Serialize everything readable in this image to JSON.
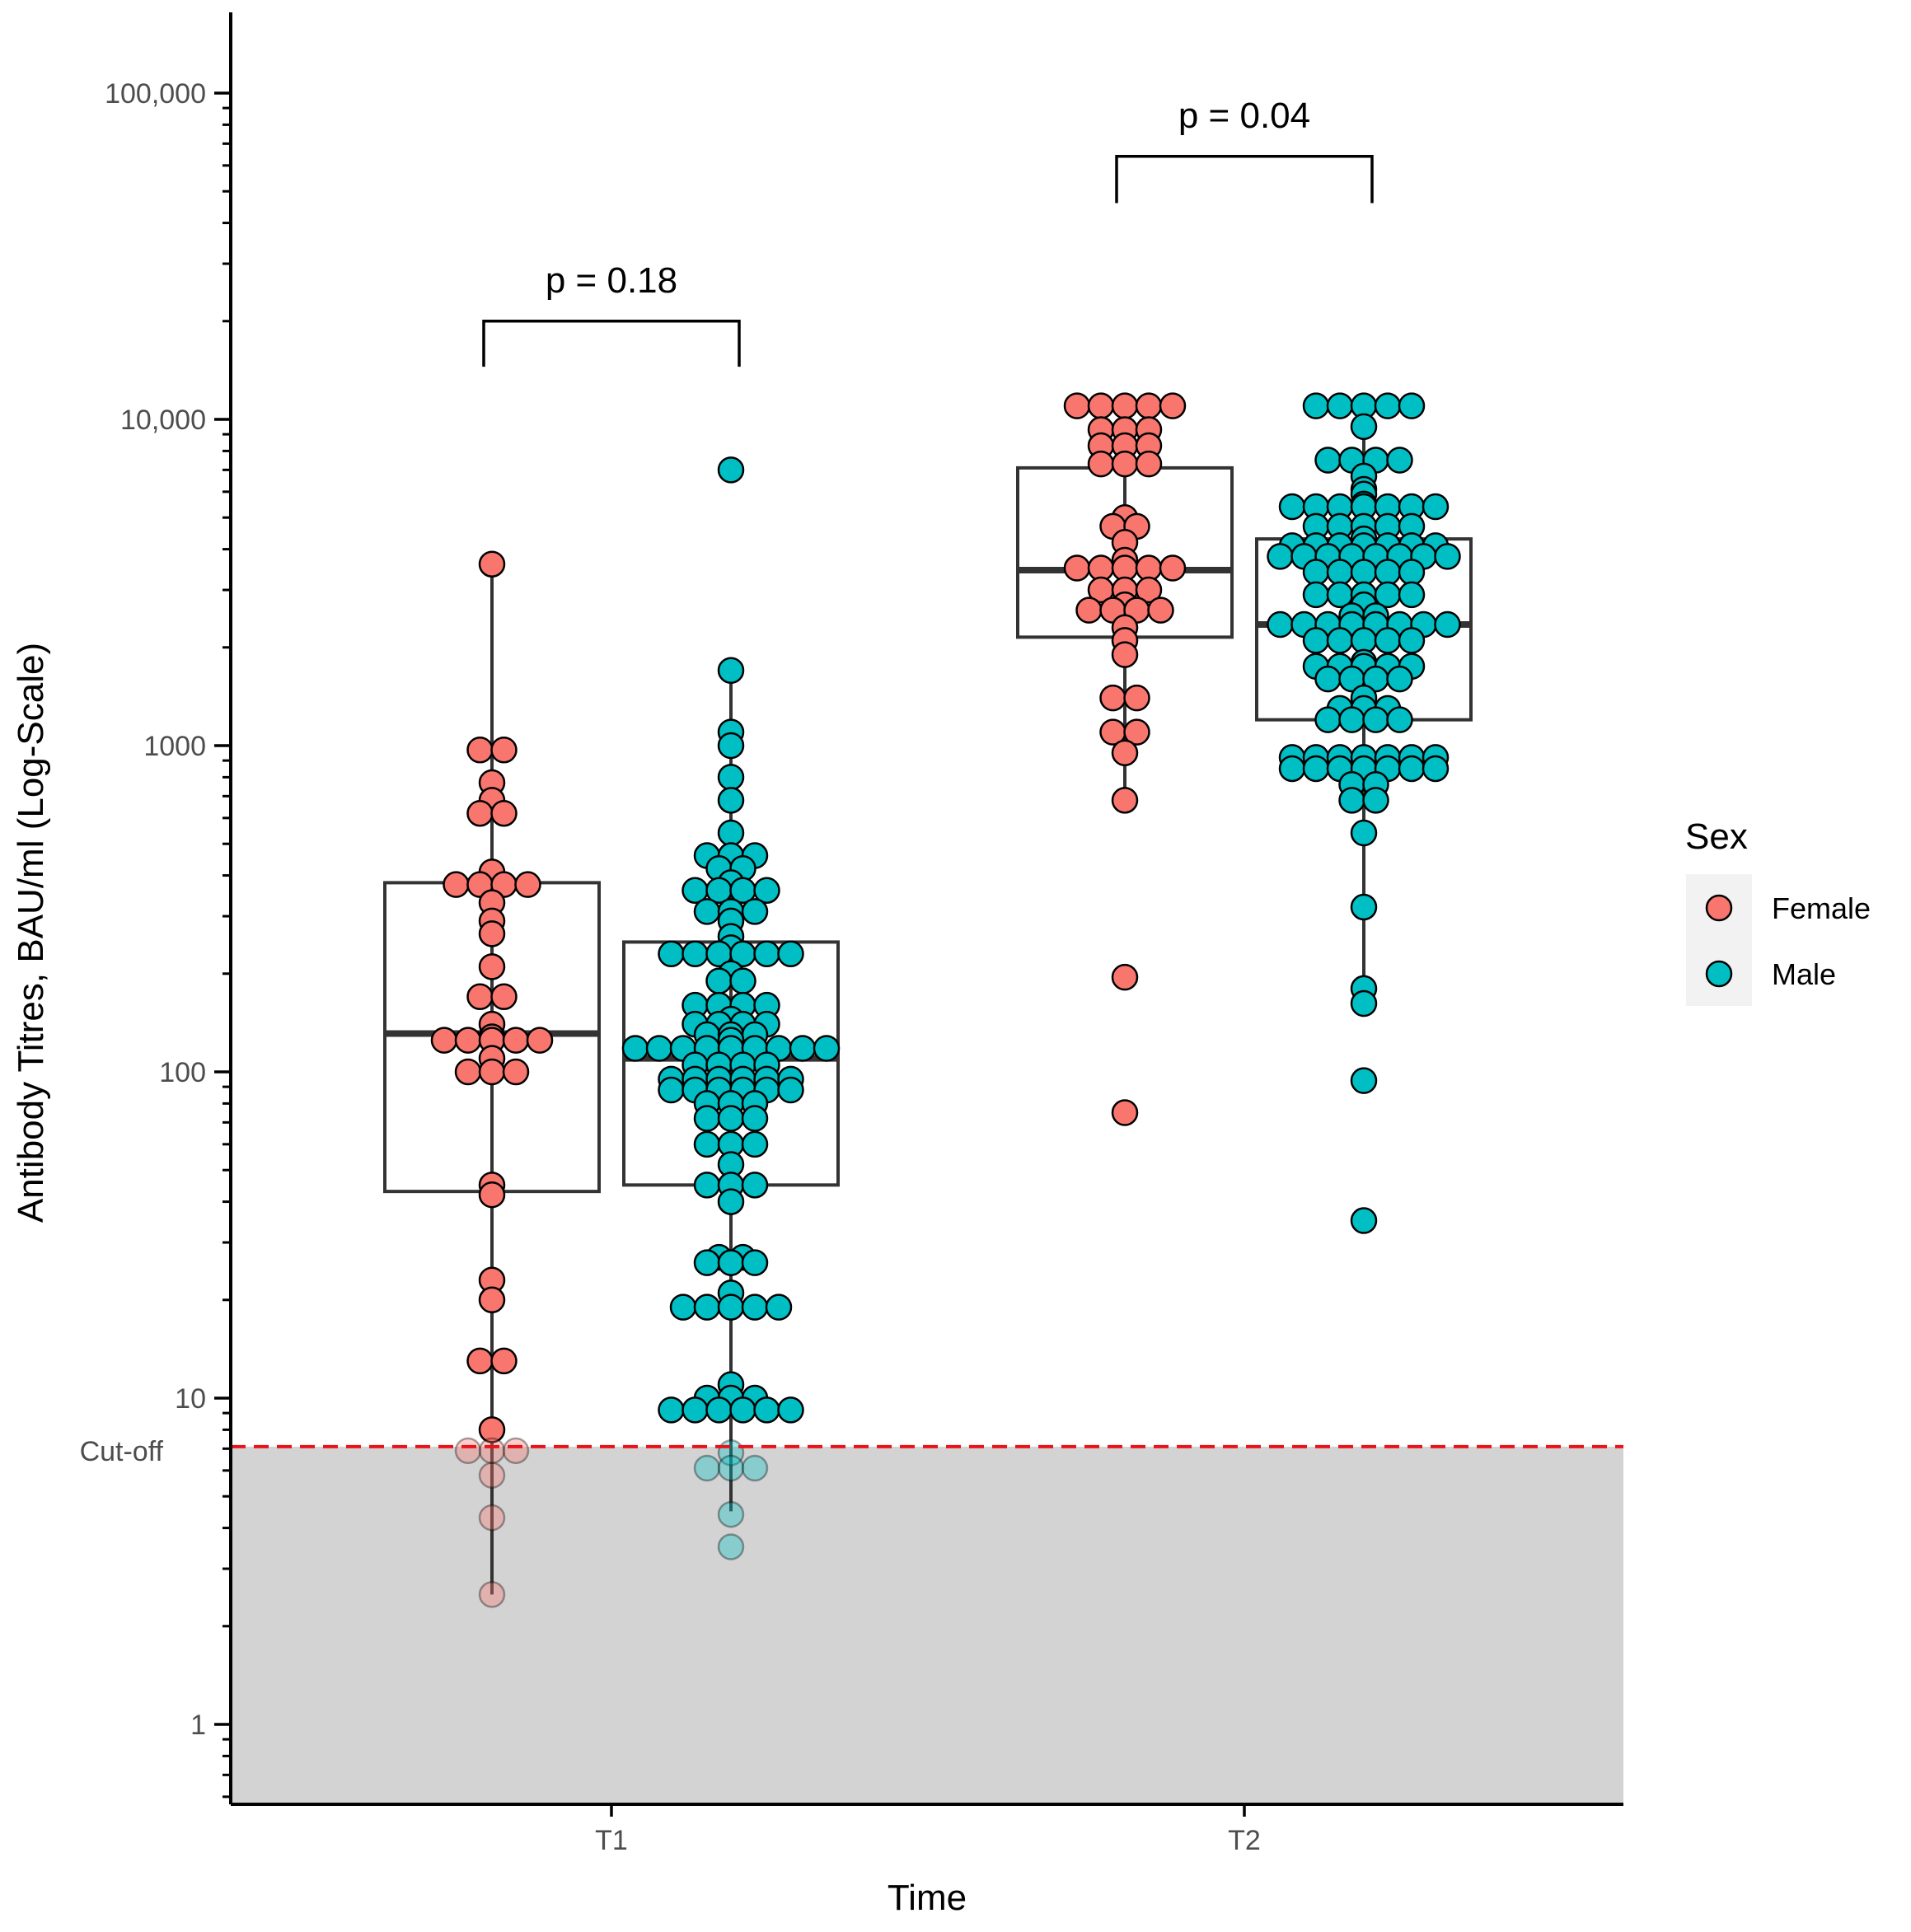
{
  "chart_data": {
    "type": "boxplot-beeswarm",
    "xlabel": "Time",
    "ylabel": "Antibody Titres, BAU/ml (Log-Scale)",
    "y_scale": "log10",
    "ylim": [
      0.55,
      180000
    ],
    "y_ticks": [
      {
        "value": 1,
        "label": "1"
      },
      {
        "value": 10,
        "label": "10"
      },
      {
        "value": 100,
        "label": "100"
      },
      {
        "value": 1000,
        "label": "1000"
      },
      {
        "value": 10000,
        "label": "10,000"
      },
      {
        "value": 100000,
        "label": "100,000"
      }
    ],
    "categories": [
      "T1",
      "T2"
    ],
    "cutoff": {
      "value": 7.1,
      "label": "Cut-off",
      "color": "#e8141a"
    },
    "shade_color": "#d3d3d3",
    "legend": {
      "title": "Sex",
      "position": "right",
      "entries": [
        {
          "name": "Female",
          "color": "#f8766d"
        },
        {
          "name": "Male",
          "color": "#00bfc4"
        }
      ]
    },
    "comparisons": [
      {
        "category": "T1",
        "label": "p = 0.18",
        "y_bracket": 20000,
        "y_drop": 14500
      },
      {
        "category": "T2",
        "label": "p = 0.04",
        "y_bracket": 64000,
        "y_drop": 46000
      }
    ],
    "series": [
      {
        "name": "Female",
        "group": "T1",
        "color": "#f8766d",
        "box": {
          "q1": 43,
          "median": 131,
          "q3": 380,
          "whisker_low": 2.5,
          "whisker_high": 3600
        },
        "points": [
          3600,
          970,
          970,
          770,
          680,
          620,
          620,
          410,
          375,
          375,
          375,
          375,
          330,
          290,
          265,
          210,
          170,
          170,
          140,
          128,
          125,
          125,
          125,
          125,
          125,
          110,
          100,
          100,
          100,
          45,
          42,
          23,
          20,
          13,
          13,
          8,
          6.9,
          6.9,
          6.9,
          5.8,
          4.3,
          2.5
        ]
      },
      {
        "name": "Male",
        "group": "T1",
        "color": "#00bfc4",
        "box": {
          "q1": 45,
          "median": 110,
          "q3": 250,
          "whisker_low": 4.5,
          "whisker_high": 1700
        },
        "points": [
          7000,
          1700,
          1100,
          1000,
          800,
          680,
          540,
          460,
          460,
          460,
          420,
          420,
          380,
          360,
          360,
          360,
          360,
          310,
          310,
          310,
          290,
          260,
          240,
          230,
          230,
          230,
          230,
          230,
          230,
          200,
          190,
          190,
          160,
          160,
          160,
          160,
          145,
          140,
          140,
          140,
          140,
          130,
          130,
          130,
          125,
          118,
          118,
          118,
          118,
          118,
          118,
          118,
          118,
          118,
          105,
          105,
          105,
          105,
          95,
          95,
          95,
          95,
          95,
          95,
          88,
          88,
          88,
          88,
          88,
          88,
          80,
          80,
          80,
          72,
          72,
          72,
          60,
          60,
          60,
          52,
          45,
          45,
          45,
          40,
          27,
          27,
          26,
          26,
          26,
          21,
          19,
          19,
          19,
          19,
          19,
          11,
          10,
          10,
          10,
          9.2,
          9.2,
          9.2,
          9.2,
          9.2,
          9.2,
          6.8,
          6.1,
          6.1,
          6.1,
          4.4,
          3.5
        ]
      },
      {
        "name": "Female",
        "group": "T2",
        "color": "#f8766d",
        "box": {
          "q1": 2150,
          "median": 3450,
          "q3": 7100,
          "whisker_low": 680,
          "whisker_high": 11000
        },
        "points": [
          11000,
          11000,
          11000,
          11000,
          11000,
          9300,
          9300,
          9300,
          8300,
          8300,
          8300,
          7300,
          7300,
          7300,
          5000,
          4700,
          4700,
          4200,
          3700,
          3500,
          3500,
          3500,
          3500,
          3500,
          3000,
          3000,
          3000,
          2700,
          2600,
          2600,
          2600,
          2600,
          2300,
          2100,
          1900,
          1400,
          1400,
          1100,
          1100,
          950,
          680,
          195,
          75
        ]
      },
      {
        "name": "Male",
        "group": "T2",
        "color": "#00bfc4",
        "box": {
          "q1": 1200,
          "median": 2350,
          "q3": 4300,
          "whisker_low": 180,
          "whisker_high": 11000
        },
        "points": [
          11000,
          11000,
          11000,
          11000,
          11000,
          9500,
          7500,
          7500,
          7500,
          7500,
          6700,
          6100,
          5900,
          5500,
          5400,
          5400,
          5400,
          5400,
          5400,
          5400,
          5400,
          4700,
          4700,
          4700,
          4700,
          4700,
          4300,
          4100,
          4100,
          4100,
          4100,
          4100,
          4100,
          4100,
          3800,
          3800,
          3800,
          3800,
          3800,
          3800,
          3800,
          3800,
          3400,
          3400,
          3400,
          3400,
          3400,
          2900,
          2900,
          2900,
          2900,
          2900,
          2700,
          2500,
          2500,
          2350,
          2350,
          2350,
          2350,
          2350,
          2350,
          2350,
          2350,
          2100,
          2100,
          2100,
          2100,
          2100,
          1800,
          1750,
          1750,
          1750,
          1750,
          1750,
          1600,
          1600,
          1600,
          1600,
          1400,
          1300,
          1300,
          1300,
          1200,
          1200,
          1200,
          1200,
          920,
          920,
          920,
          920,
          920,
          920,
          920,
          850,
          850,
          850,
          850,
          850,
          850,
          850,
          760,
          760,
          680,
          680,
          540,
          320,
          180,
          162,
          94,
          35
        ]
      }
    ]
  }
}
